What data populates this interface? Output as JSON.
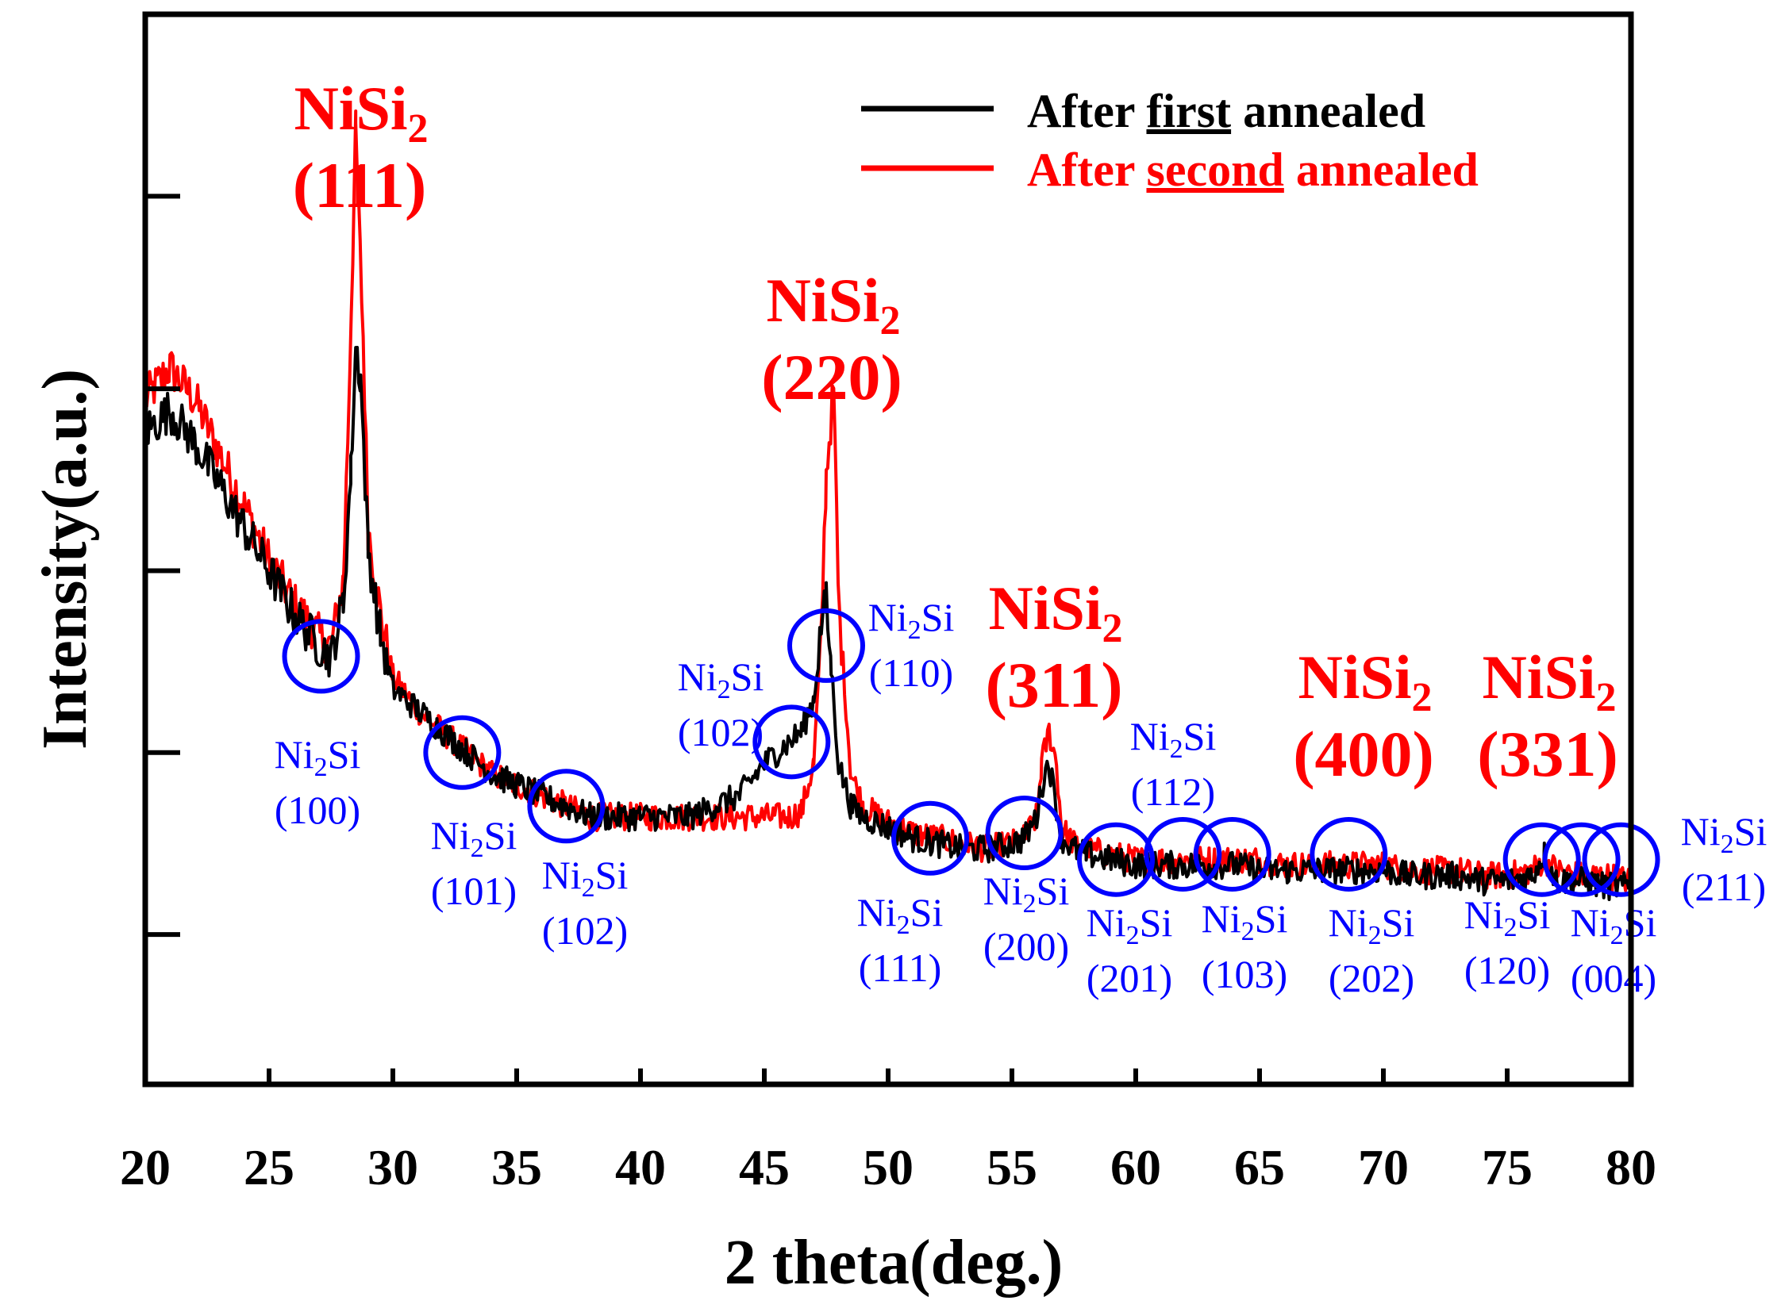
{
  "chart_data": {
    "type": "line",
    "title": "",
    "xlabel": "2 theta(deg.)",
    "ylabel": "Intensity(a.u.)",
    "xlim": [
      20,
      80
    ],
    "ylim": [
      0,
      100
    ],
    "x_ticks": [
      "20",
      "25",
      "30",
      "35",
      "40",
      "45",
      "50",
      "55",
      "60",
      "65",
      "70",
      "75",
      "80"
    ],
    "y_tick_values": [
      14,
      31,
      48,
      65,
      83,
      100
    ],
    "y_tick_labels_shown": false,
    "grid": false,
    "legend_position": "top-right",
    "series": [
      {
        "name": "After first annealed",
        "legend_prefix": "After ",
        "legend_emph": "first",
        "legend_suffix": " annealed",
        "color": "#000000",
        "x": [
          20,
          21,
          22,
          23,
          24,
          25,
          26,
          27,
          27.5,
          28,
          28.3,
          28.5,
          28.7,
          29,
          29.5,
          30,
          31,
          32,
          33,
          34,
          35,
          36,
          37,
          38,
          39,
          40,
          41,
          42,
          43,
          44,
          45,
          46,
          46.5,
          47,
          47.3,
          47.5,
          47.7,
          48,
          48.5,
          49,
          50,
          51,
          52,
          53,
          54,
          55,
          55.5,
          56,
          56.3,
          56.5,
          56.8,
          57,
          57.5,
          58,
          59,
          60,
          61,
          62,
          63,
          64,
          65,
          66,
          67,
          68,
          69,
          70,
          71,
          72,
          73,
          74,
          75,
          76,
          76.5,
          77,
          78,
          79,
          80
        ],
        "y": [
          61,
          63,
          60,
          56,
          52,
          48,
          44,
          41,
          40,
          45,
          57,
          69,
          66,
          50,
          42,
          37,
          35,
          33,
          31,
          29,
          28,
          27,
          26,
          25,
          25,
          25,
          25,
          25,
          26,
          27,
          30,
          32,
          33,
          36,
          43,
          45,
          39,
          30,
          26,
          25,
          24,
          23,
          22.5,
          22,
          22,
          22.5,
          23,
          25,
          29,
          30,
          26,
          23,
          22,
          21.5,
          21,
          20.5,
          20.5,
          20.5,
          20.5,
          20.5,
          20,
          20,
          20,
          20,
          20,
          20,
          19.5,
          19.5,
          19.5,
          19,
          19,
          19.5,
          21.5,
          19,
          19,
          18.5,
          18.5
        ]
      },
      {
        "name": "After second annealed",
        "legend_prefix": "After ",
        "legend_emph": "second",
        "legend_suffix": " annealed",
        "color": "#ff0000",
        "x": [
          20,
          21,
          22,
          23,
          24,
          25,
          26,
          27,
          27.5,
          28,
          28.2,
          28.5,
          28.8,
          29,
          29.5,
          30,
          31,
          32,
          33,
          34,
          35,
          36,
          37,
          38,
          39,
          40,
          41,
          42,
          43,
          44,
          45,
          46,
          46.5,
          47,
          47.3,
          47.5,
          47.8,
          48,
          48.5,
          49,
          50,
          51,
          52,
          53,
          54,
          55,
          55.5,
          56,
          56.2,
          56.5,
          56.8,
          57,
          57.5,
          58,
          59,
          60,
          61,
          62,
          63,
          64,
          65,
          66,
          67,
          68,
          69,
          70,
          71,
          72,
          73,
          74,
          75,
          76,
          76.5,
          77,
          78,
          79,
          80
        ],
        "y": [
          64,
          67,
          64,
          59,
          54,
          49,
          45,
          42,
          41,
          47,
          62,
          89,
          70,
          52,
          44,
          38,
          35,
          33,
          31,
          29,
          28,
          27,
          26,
          25,
          25,
          25,
          25,
          25,
          25,
          25,
          25,
          25,
          25.5,
          30,
          42,
          57,
          65,
          45,
          29,
          26,
          24.5,
          23.5,
          23,
          22.5,
          22,
          22.5,
          23,
          25,
          30,
          33,
          30,
          24,
          22.5,
          22,
          21.5,
          21,
          21,
          21,
          21,
          21,
          21,
          20.5,
          20.5,
          20.5,
          20.5,
          20.5,
          20,
          20,
          20,
          19.5,
          19.5,
          20,
          21,
          20,
          19.5,
          19.5,
          19
        ]
      }
    ],
    "annotations": {
      "nisi2_peaks": [
        {
          "x": 28.6,
          "formula_base": "NiSi",
          "formula_sub": "2",
          "hkl": "(111)"
        },
        {
          "x": 47.5,
          "formula_base": "NiSi",
          "formula_sub": "2",
          "hkl": "(220)"
        },
        {
          "x": 56.4,
          "formula_base": "NiSi",
          "formula_sub": "2",
          "hkl": "(311)"
        },
        {
          "x": 68.8,
          "formula_base": "NiSi",
          "formula_sub": "2",
          "hkl": "(400)"
        },
        {
          "x": 76.3,
          "formula_base": "NiSi",
          "formula_sub": "2",
          "hkl": "(331)"
        }
      ],
      "ni2si_peaks": [
        {
          "x": 27.1,
          "y": 40,
          "base1": "Ni",
          "sub": "2",
          "base2": "Si",
          "hkl": "(100)"
        },
        {
          "x": 32.8,
          "y": 31,
          "base1": "Ni",
          "sub": "2",
          "base2": "Si",
          "hkl": "(101)"
        },
        {
          "x": 37.0,
          "y": 26,
          "base1": "Ni",
          "sub": "2",
          "base2": "Si",
          "hkl": "(102)"
        },
        {
          "x": 46.1,
          "y": 32,
          "base1": "Ni",
          "sub": "2",
          "base2": "Si",
          "hkl": "(102)"
        },
        {
          "x": 47.5,
          "y": 41,
          "base1": "Ni",
          "sub": "2",
          "base2": "Si",
          "hkl": "(110)"
        },
        {
          "x": 51.7,
          "y": 23,
          "base1": "Ni",
          "sub": "2",
          "base2": "Si",
          "hkl": "(111)"
        },
        {
          "x": 55.5,
          "y": 23.5,
          "base1": "Ni",
          "sub": "2",
          "base2": "Si",
          "hkl": "(200)"
        },
        {
          "x": 59.2,
          "y": 21,
          "base1": "Ni",
          "sub": "2",
          "base2": "Si",
          "hkl": "(201)"
        },
        {
          "x": 61.9,
          "y": 21.5,
          "base1": "Ni",
          "sub": "2",
          "base2": "Si",
          "hkl": "(112)"
        },
        {
          "x": 63.9,
          "y": 21.5,
          "base1": "Ni",
          "sub": "2",
          "base2": "Si",
          "hkl": "(103)"
        },
        {
          "x": 68.6,
          "y": 21.5,
          "base1": "Ni",
          "sub": "2",
          "base2": "Si",
          "hkl": "(202)"
        },
        {
          "x": 76.4,
          "y": 21,
          "base1": "Ni",
          "sub": "2",
          "base2": "Si",
          "hkl": "(120)"
        },
        {
          "x": 78.0,
          "y": 21,
          "base1": "Ni",
          "sub": "2",
          "base2": "Si",
          "hkl": "(004)"
        },
        {
          "x": 79.6,
          "y": 21,
          "base1": "Ni",
          "sub": "2",
          "base2": "Si",
          "hkl": "(211)"
        }
      ]
    },
    "colors": {
      "nisi2_label": "#ff0000",
      "ni2si_label": "#0000ff",
      "circle": "#0000ff",
      "axis": "#000000"
    }
  }
}
